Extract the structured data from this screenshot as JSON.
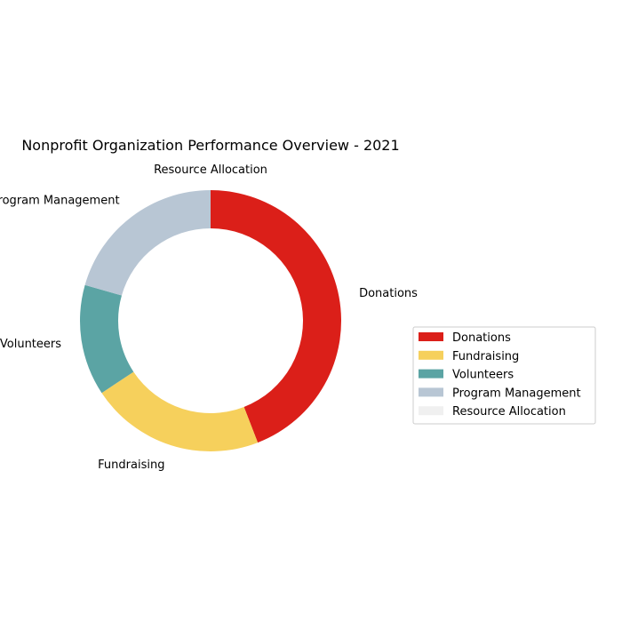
{
  "chart_data": {
    "type": "pie",
    "donut": true,
    "title": "Nonprofit Organization Performance Overview - 2021",
    "categories": [
      "Donations",
      "Fundraising",
      "Volunteers",
      "Program Management",
      "Resource Allocation"
    ],
    "values": [
      45,
      22,
      14,
      21,
      0
    ],
    "colors": [
      "#db1f19",
      "#f6d05c",
      "#5ba4a4",
      "#b8c6d4",
      "#f0f0f0"
    ],
    "start_angle_deg": 90,
    "direction": "clockwise",
    "legend": {
      "placement": "center-right",
      "entries": [
        "Donations",
        "Fundraising",
        "Volunteers",
        "Program Management",
        "Resource Allocation"
      ]
    }
  }
}
